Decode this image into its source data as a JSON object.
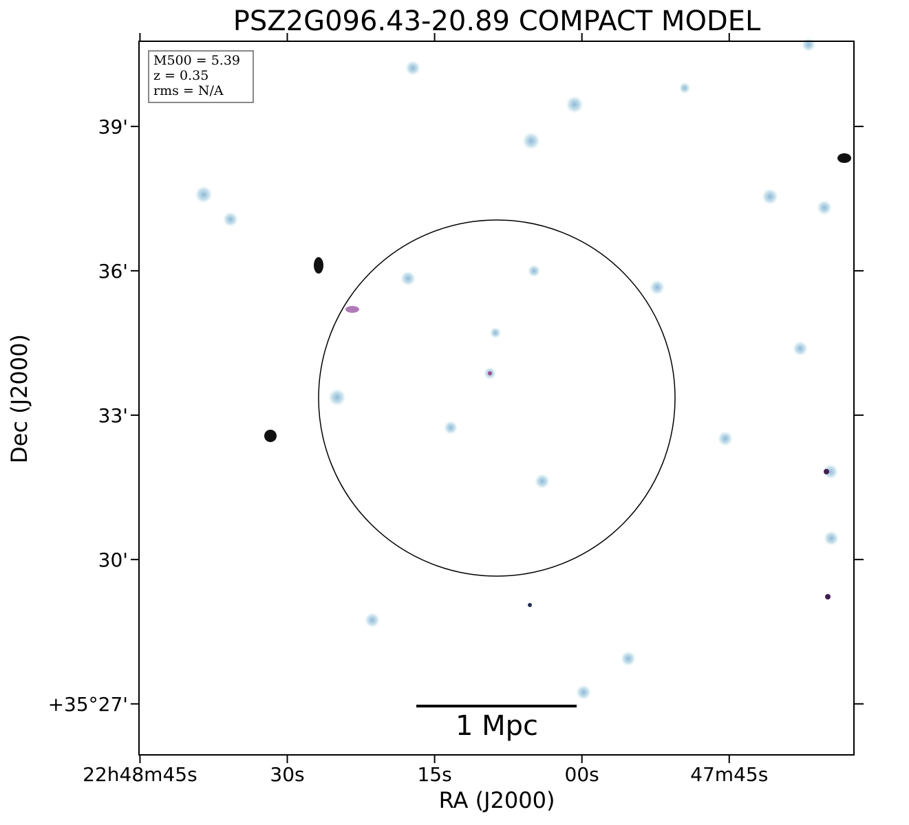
{
  "chart_data": {
    "type": "image",
    "title": "PSZ2G096.43-20.89 COMPACT MODEL",
    "x_label": "RA (J2000)",
    "y_label": "Dec (J2000)",
    "annotations": [
      "M500 = 5.39",
      "z = 0.35",
      "rms = N/A"
    ],
    "scale_bar_label": "1 Mpc",
    "xlim": [
      2925.1,
      2852.3
    ],
    "ylim": [
      25.94,
      40.77
    ],
    "xticks": [
      {
        "value": 2925,
        "label": "22h48m45s"
      },
      {
        "value": 2910,
        "label": "30s"
      },
      {
        "value": 2895,
        "label": "15s"
      },
      {
        "value": 2880,
        "label": "00s"
      },
      {
        "value": 2865,
        "label": "47m45s"
      }
    ],
    "yticks": [
      {
        "value": 39,
        "label": "39'"
      },
      {
        "value": 36,
        "label": "36'"
      },
      {
        "value": 33,
        "label": "33'"
      },
      {
        "value": 30,
        "label": "30'"
      },
      {
        "value": 27,
        "label": "+35°27'"
      }
    ]
  }
}
